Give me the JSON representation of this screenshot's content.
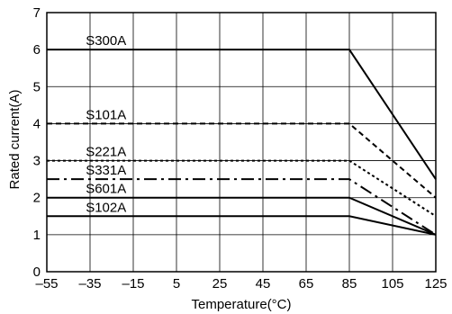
{
  "chart_data": {
    "type": "line",
    "xlabel": "Temperature(°C)",
    "ylabel": "Rated current(A)",
    "xlim": [
      -55,
      125
    ],
    "ylim": [
      0,
      7
    ],
    "x_ticks": [
      -55,
      -35,
      -15,
      5,
      25,
      45,
      65,
      85,
      105,
      125
    ],
    "x_tick_labels": [
      "–55",
      "–35",
      "–15",
      "5",
      "25",
      "45",
      "65",
      "85",
      "105",
      "125"
    ],
    "y_ticks": [
      0,
      1,
      2,
      3,
      4,
      5,
      6,
      7
    ],
    "y_tick_labels": [
      "0",
      "1",
      "2",
      "3",
      "4",
      "5",
      "6",
      "7"
    ],
    "grid": true,
    "series": [
      {
        "name": "S300A",
        "style": "solid",
        "color": "#000000",
        "x": [
          -55,
          85,
          125
        ],
        "y": [
          6,
          6,
          2.5
        ]
      },
      {
        "name": "S101A",
        "style": "dashed",
        "color": "#000000",
        "x": [
          -55,
          85,
          125
        ],
        "y": [
          4,
          4,
          2
        ]
      },
      {
        "name": "S221A",
        "style": "dotted",
        "color": "#000000",
        "x": [
          -55,
          85,
          125
        ],
        "y": [
          3,
          3,
          1.5
        ]
      },
      {
        "name": "S331A",
        "style": "dashdot",
        "color": "#000000",
        "x": [
          -55,
          85,
          125
        ],
        "y": [
          2.5,
          2.5,
          1
        ]
      },
      {
        "name": "S601A",
        "style": "solid",
        "color": "#000000",
        "x": [
          -55,
          85,
          125
        ],
        "y": [
          2,
          2,
          1
        ]
      },
      {
        "name": "S102A",
        "style": "solid",
        "color": "#000000",
        "x": [
          -55,
          85,
          125
        ],
        "y": [
          1.5,
          1.5,
          1
        ]
      }
    ]
  }
}
